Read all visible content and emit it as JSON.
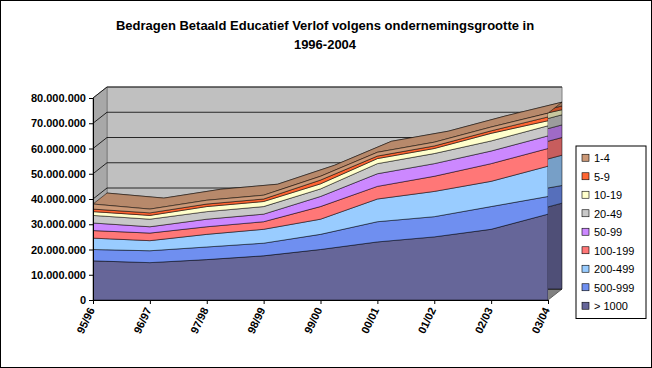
{
  "chart_data": {
    "type": "area",
    "title": "Bedragen Betaald Educatief Verlof volgens ondernemingsgrootte in 1996-2004",
    "categories": [
      "95/96",
      "96/97",
      "97/98",
      "98/99",
      "99/00",
      "00/01",
      "01/02",
      "02/03",
      "03/04"
    ],
    "series": [
      {
        "name": "> 1000",
        "color": "#666699",
        "values": [
          15500000,
          14800000,
          16000000,
          17500000,
          20000000,
          23000000,
          25000000,
          28000000,
          34000000
        ]
      },
      {
        "name": "500-999",
        "color": "#6f8ff0",
        "values": [
          4500000,
          4700000,
          5000000,
          5000000,
          6000000,
          8000000,
          8000000,
          9000000,
          7000000
        ]
      },
      {
        "name": "200-499",
        "color": "#99ccff",
        "values": [
          4500000,
          4000000,
          5000000,
          5500000,
          6000000,
          9000000,
          10000000,
          10000000,
          12000000
        ]
      },
      {
        "name": "100-199",
        "color": "#ff7777",
        "values": [
          3000000,
          3000000,
          3000000,
          3000000,
          5000000,
          5000000,
          6000000,
          7000000,
          7000000
        ]
      },
      {
        "name": "50-99",
        "color": "#cc88ff",
        "values": [
          3000000,
          2500000,
          3000000,
          3000000,
          4000000,
          5000000,
          5000000,
          5000000,
          5000000
        ]
      },
      {
        "name": "20-49",
        "color": "#c8c8c8",
        "values": [
          3000000,
          3000000,
          3000000,
          3000000,
          3000000,
          4000000,
          4000000,
          4000000,
          4000000
        ]
      },
      {
        "name": "10-19",
        "color": "#ffffcc",
        "values": [
          1500000,
          1500000,
          2000000,
          2000000,
          2000000,
          2000000,
          2000000,
          3000000,
          2000000
        ]
      },
      {
        "name": "5-9",
        "color": "#ff6633",
        "values": [
          1000000,
          1000000,
          1000000,
          1000000,
          1500000,
          1000000,
          1000000,
          1000000,
          1500000
        ]
      },
      {
        "name": "1-4",
        "color": "#cc9977",
        "values": [
          2000000,
          1500000,
          1500000,
          1500000,
          1500000,
          1500000,
          1500000,
          1500000,
          1500000
        ]
      }
    ],
    "ylim": [
      0,
      80000000
    ],
    "yticks": [
      0,
      {
        "value": 10000000,
        "label": "10.000.000"
      },
      {
        "value": 20000000,
        "label": "20.000.000"
      },
      {
        "value": 30000000,
        "label": "30.000.000"
      },
      {
        "value": 40000000,
        "label": "40.000.000"
      },
      {
        "value": 50000000,
        "label": "50.000.000"
      },
      {
        "value": 60000000,
        "label": "60.000.000"
      },
      {
        "value": 70000000,
        "label": "70.000.000"
      },
      {
        "value": 80000000,
        "label": "80.000.000"
      }
    ],
    "stacked": true,
    "grid": true,
    "legend": "right"
  }
}
